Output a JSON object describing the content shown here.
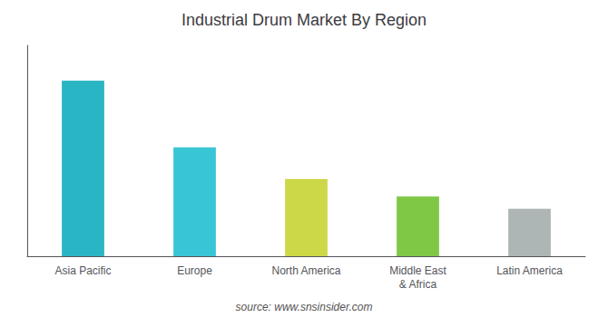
{
  "chart_data": {
    "type": "bar",
    "title": "Industrial Drum Market By Region",
    "categories": [
      "Asia Pacific",
      "Europe",
      "North America",
      "Middle East\n& Africa",
      "Latin America"
    ],
    "values": [
      100,
      62,
      44,
      34,
      27
    ],
    "colors": [
      "#2ab5c4",
      "#38c5d5",
      "#cdd848",
      "#7ec846",
      "#adb5b5"
    ],
    "ylim": [
      0,
      120
    ],
    "tick_labels": "x",
    "grid": false,
    "annotations": [
      "source: www.snsinsider.com"
    ]
  }
}
